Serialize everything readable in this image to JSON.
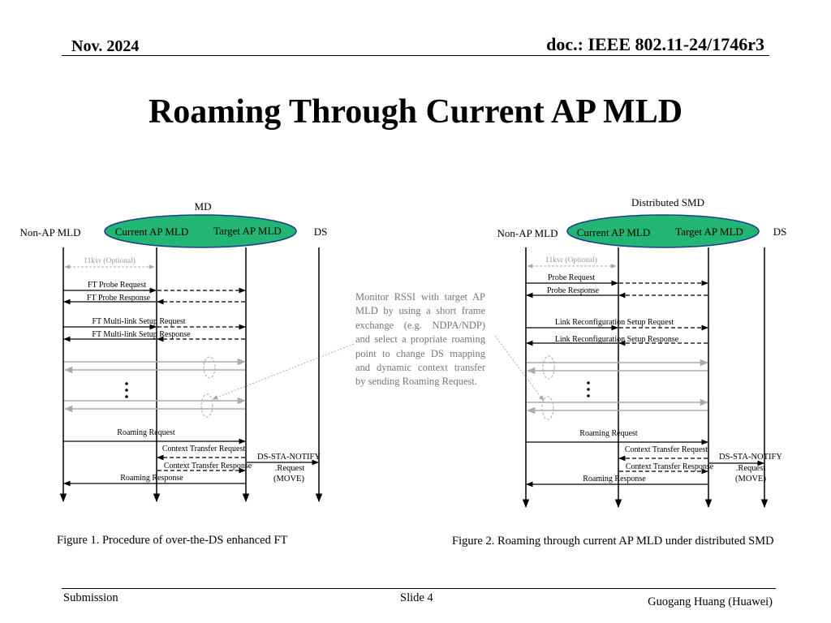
{
  "header": {
    "date": "Nov. 2024",
    "doc": "doc.: IEEE 802.11-24/1746r3"
  },
  "title": "Roaming Through Current AP MLD",
  "description": "Monitor RSSI with target AP MLD by using a short frame exchange (e.g. NDPA/NDP) and select a propriate roaming point to change DS mapping and dynamic context transfer by sending Roaming Request.",
  "figure1": {
    "group_label": "MD",
    "entities": [
      "Non-AP MLD",
      "Current AP MLD",
      "Target AP MLD",
      "DS"
    ],
    "messages": {
      "optional": "11kvr (Optional)",
      "m1": "FT Probe Request",
      "m2": "FT Probe Response",
      "m3": "FT Multi-link Setup Request",
      "m4": "FT Multi-link Setup Response",
      "roam_req": "Roaming Request",
      "ctx_req": "Context Transfer Request",
      "ctx_resp": "Context Transfer Response",
      "roam_resp": "Roaming Response",
      "ds_notify": "DS-STA-NOTIFY",
      "ds_request": ".Request",
      "ds_move": "(MOVE)"
    },
    "caption": "Figure 1. Procedure of over-the-DS enhanced FT"
  },
  "figure2": {
    "group_label": "Distributed SMD",
    "entities": [
      "Non-AP MLD",
      "Current AP MLD",
      "Target AP MLD",
      "DS"
    ],
    "messages": {
      "optional": "11kvr (Optional)",
      "m1": "Probe Request",
      "m2": "Probe Response",
      "m3": "Link Reconfiguration Setup Request",
      "m4": "Link Reconfiguration Setup Response",
      "roam_req": "Roaming Request",
      "ctx_req": "Context Transfer Request",
      "ctx_resp": "Context Transfer Response",
      "roam_resp": "Roaming Response",
      "ds_notify": "DS-STA-NOTIFY",
      "ds_request": ".Request",
      "ds_move": "(MOVE)"
    },
    "caption": "Figure 2. Roaming through current AP MLD under distributed SMD"
  },
  "colors": {
    "ellipse_fill": "#22b573",
    "ellipse_stroke": "#1b3f8f",
    "faded": "#aaaaaa"
  },
  "footer": {
    "submission": "Submission",
    "slide": "Slide 4",
    "author": "Guogang Huang (Huawei)"
  }
}
